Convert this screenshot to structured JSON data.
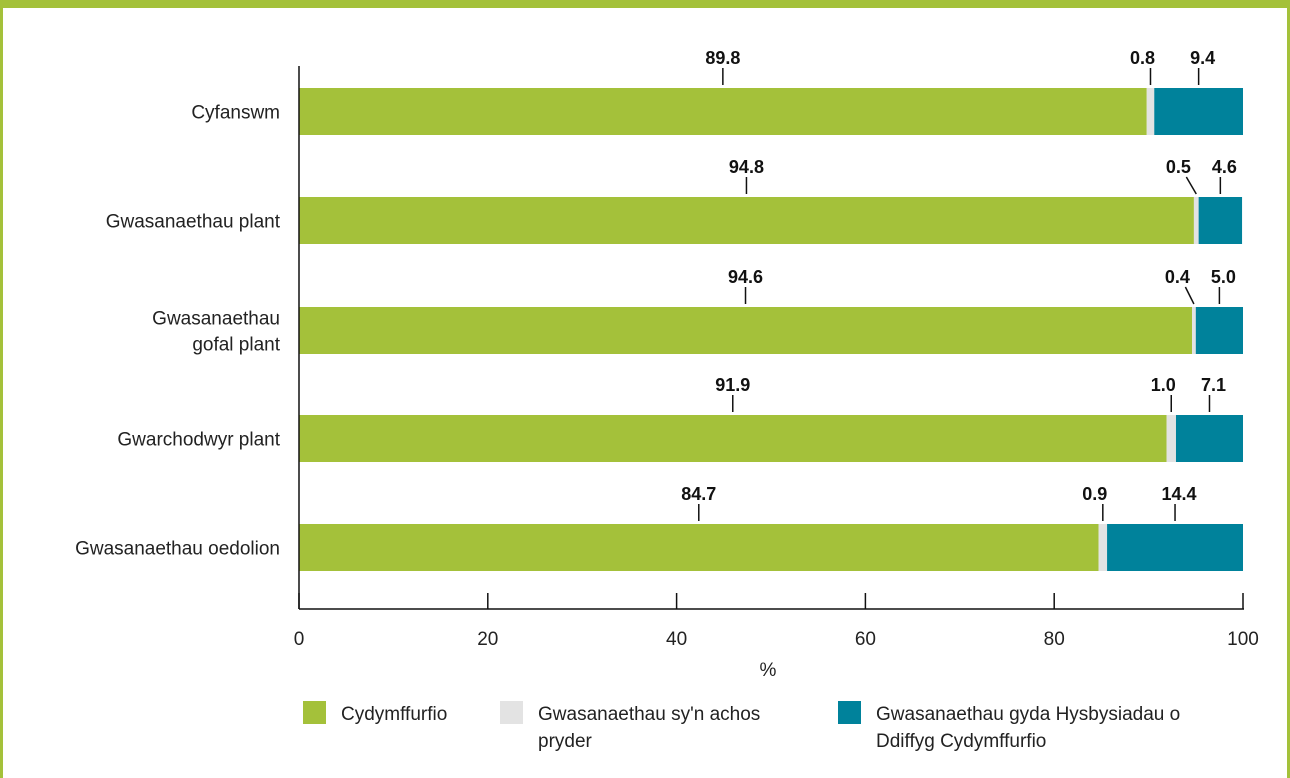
{
  "chart_data": {
    "type": "bar",
    "orientation": "horizontal",
    "stacked": true,
    "categories": [
      "Cyfanswm",
      "Gwasanaethau plant",
      "Gwasanaethau gofal plant",
      "Gwarchodwyr plant",
      "Gwasanaethau oedolion"
    ],
    "category_lines": [
      [
        "Cyfanswm"
      ],
      [
        "Gwasanaethau plant"
      ],
      [
        "Gwasanaethau",
        "gofal plant"
      ],
      [
        "Gwarchodwyr plant"
      ],
      [
        "Gwasanaethau oedolion"
      ]
    ],
    "series": [
      {
        "name": "Cydymffurfio",
        "color": "#a4c13a",
        "values": [
          89.8,
          94.8,
          94.6,
          91.9,
          84.7
        ],
        "labels": [
          "89.8",
          "94.8",
          "94.6",
          "91.9",
          "84.7"
        ]
      },
      {
        "name": "Gwasanaethau sy'n achos pryder",
        "color": "#e3e3e3",
        "values": [
          0.8,
          0.5,
          0.4,
          1.0,
          0.9
        ],
        "labels": [
          "0.8",
          "0.5",
          "0.4",
          "1.0",
          "0.9"
        ]
      },
      {
        "name": "Gwasanaethau gyda Hysbysiadau o Ddiffyg Cydymffurfio",
        "color": "#00829b",
        "values": [
          9.4,
          4.6,
          5.0,
          7.1,
          14.4
        ],
        "labels": [
          "9.4",
          "4.6",
          "5.0",
          "7.1",
          "14.4"
        ]
      }
    ],
    "legend_lines": [
      [
        "Cydymffurfio"
      ],
      [
        "Gwasanaethau sy'n achos",
        "pryder"
      ],
      [
        "Gwasanaethau gyda Hysbysiadau o",
        "Ddiffyg Cydymffurfio"
      ]
    ],
    "xlabel": "%",
    "xlim": [
      0,
      100
    ],
    "xticks": [
      0,
      20,
      40,
      60,
      80,
      100
    ],
    "grid": false,
    "legend_position": "bottom"
  }
}
